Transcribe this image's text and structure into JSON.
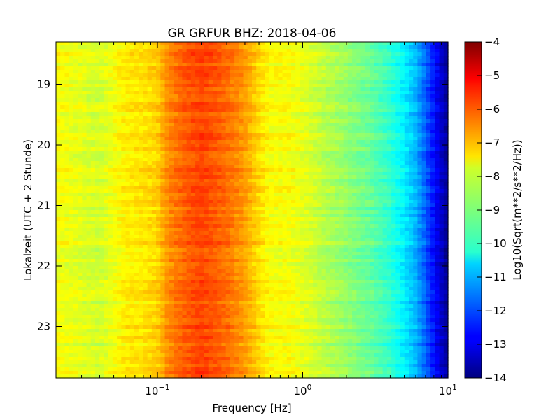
{
  "chart_data": {
    "type": "heatmap",
    "title": "GR GRFUR BHZ: 2018-04-06",
    "xlabel": "Frequency [Hz]",
    "ylabel": "Lokalzeit (UTC + 2 Stunde)",
    "colorbar_label": "Log10(Sqrt(m**2/s**2/Hz))",
    "x_scale": "log",
    "xlim": [
      0.02,
      10
    ],
    "x_ticks": [
      {
        "value": 0.1,
        "base": "10",
        "exp": "−1"
      },
      {
        "value": 1,
        "base": "10",
        "exp": "0"
      },
      {
        "value": 10,
        "base": "10",
        "exp": "1"
      }
    ],
    "ylim": [
      18.3,
      23.85
    ],
    "y_direction": "inverted",
    "y_ticks": [
      {
        "value": 19,
        "label": "19"
      },
      {
        "value": 20,
        "label": "20"
      },
      {
        "value": 21,
        "label": "21"
      },
      {
        "value": 22,
        "label": "22"
      },
      {
        "value": 23,
        "label": "23"
      }
    ],
    "colorbar_range": [
      -14,
      -4
    ],
    "colorbar_ticks": [
      {
        "value": -4,
        "label": "−4"
      },
      {
        "value": -5,
        "label": "−5"
      },
      {
        "value": -6,
        "label": "−6"
      },
      {
        "value": -7,
        "label": "−7"
      },
      {
        "value": -8,
        "label": "−8"
      },
      {
        "value": -9,
        "label": "−9"
      },
      {
        "value": -10,
        "label": "−10"
      },
      {
        "value": -11,
        "label": "−11"
      },
      {
        "value": -12,
        "label": "−12"
      },
      {
        "value": -13,
        "label": "−13"
      },
      {
        "value": -14,
        "label": "−14"
      }
    ],
    "colormap": "jet",
    "spectral_profile": {
      "frequency_hz": [
        0.02,
        0.04,
        0.06,
        0.08,
        0.1,
        0.12,
        0.15,
        0.2,
        0.3,
        0.4,
        0.5,
        0.6,
        0.8,
        1.0,
        1.5,
        2.0,
        3.0,
        4.0,
        5.0,
        6.0,
        7.0,
        8.0,
        9.0,
        10.0
      ],
      "mean_log10_amplitude": [
        -7.8,
        -8.2,
        -7.6,
        -7.5,
        -7.3,
        -6.6,
        -6.2,
        -5.9,
        -6.3,
        -6.8,
        -7.4,
        -7.8,
        -7.8,
        -8.0,
        -8.5,
        -8.8,
        -9.3,
        -9.8,
        -10.4,
        -11.0,
        -11.8,
        -12.6,
        -13.3,
        -13.8
      ]
    }
  }
}
